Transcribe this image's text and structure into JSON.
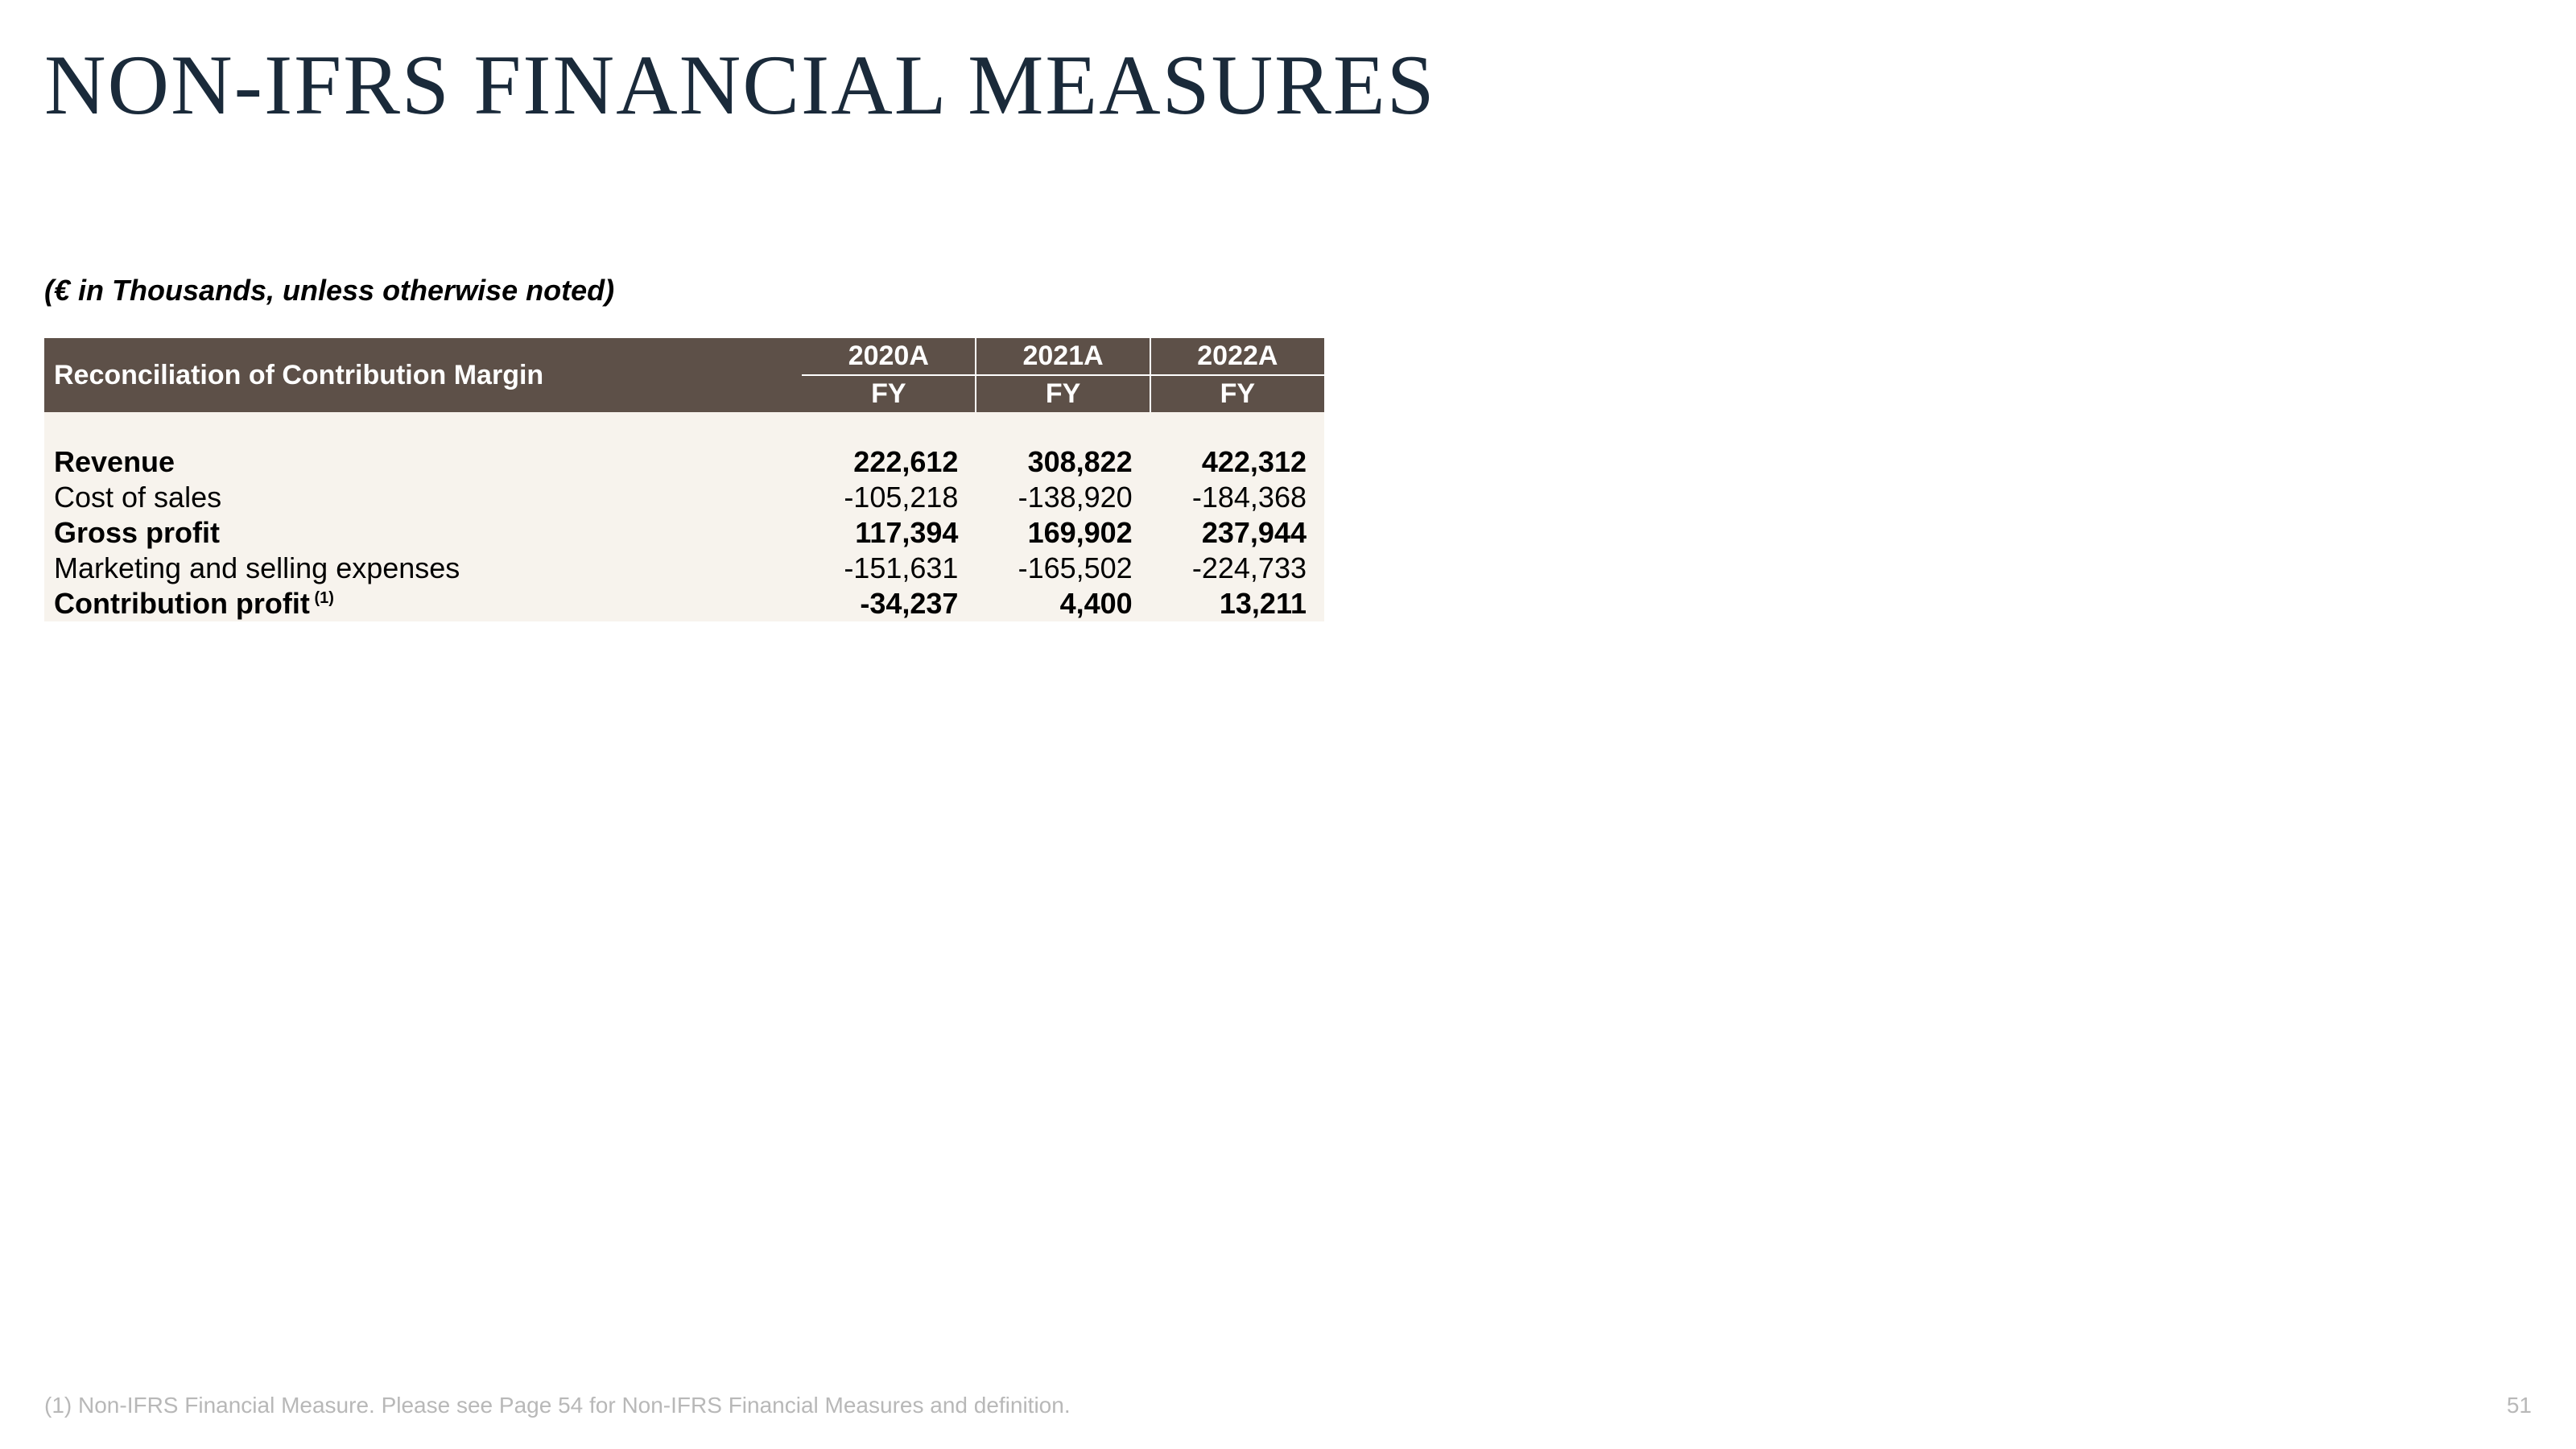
{
  "title": "NON-IFRS FINANCIAL MEASURES",
  "subtitle": "(€ in Thousands, unless otherwise noted)",
  "table": {
    "header_label": "Reconciliation of Contribution Margin",
    "years": [
      "2020A",
      "2021A",
      "2022A"
    ],
    "period": "FY",
    "rows": [
      {
        "label": "Revenue",
        "bold": true,
        "vals": [
          "222,612",
          "308,822",
          "422,312"
        ]
      },
      {
        "label": "Cost of sales",
        "bold": false,
        "vals": [
          "-105,218",
          "-138,920",
          "-184,368"
        ]
      },
      {
        "label": "Gross profit",
        "bold": true,
        "vals": [
          "117,394",
          "169,902",
          "237,944"
        ]
      },
      {
        "label": "Marketing and selling expenses",
        "bold": false,
        "vals": [
          "-151,631",
          "-165,502",
          "-224,733"
        ]
      },
      {
        "label": "Contribution profit",
        "sup": "(1)",
        "bold": true,
        "vals": [
          "-34,237",
          "4,400",
          "13,211"
        ]
      }
    ]
  },
  "footnote": "(1) Non-IFRS Financial Measure. Please see Page 54 for Non-IFRS Financial Measures and definition.",
  "page_number": "51",
  "colors": {
    "title_color": "#1a2a3a",
    "header_bg": "#5d5048",
    "row_bg": "#f7f3ed",
    "footnote_color": "#b8b8b8"
  }
}
